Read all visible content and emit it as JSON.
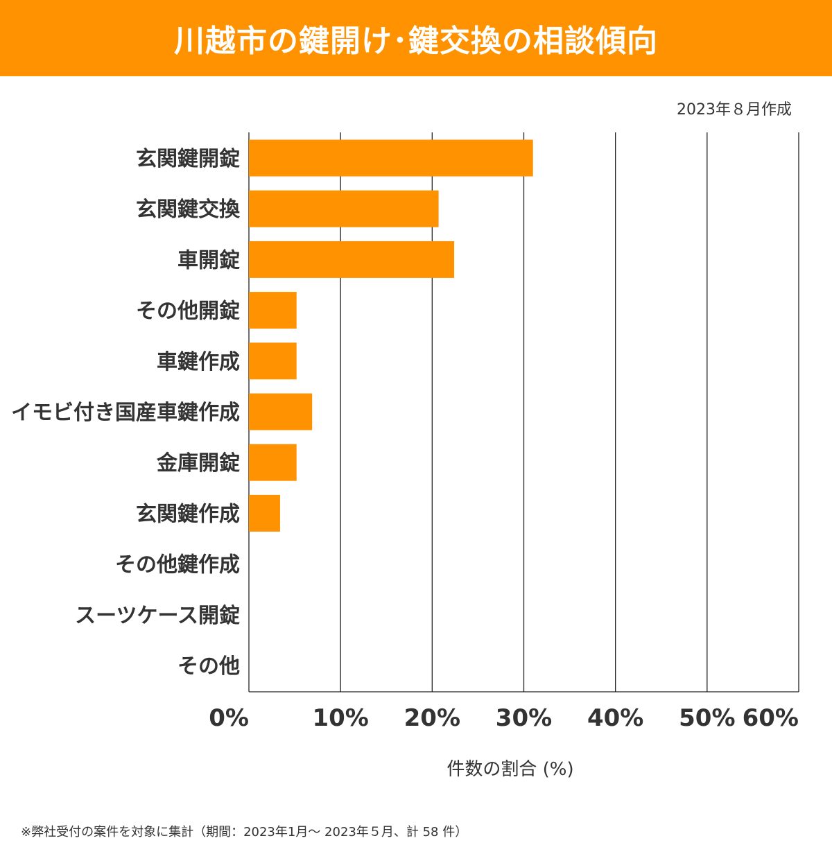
{
  "header": {
    "title": "川越市の鍵開け･鍵交換の相談傾向",
    "created": "2023年８月作成"
  },
  "footnote": "※弊社受付の案件を対象に集計（期間：2023年1月～ 2023年５月、計 58 件）",
  "colors": {
    "accent": "#fe9200",
    "text": "#333333",
    "grid": "#222222"
  },
  "chart_data": {
    "type": "bar",
    "orientation": "horizontal",
    "title": "川越市の鍵開け･鍵交換の相談傾向",
    "xlabel": "件数の割合 (%)",
    "ylabel": "",
    "xlim": [
      0,
      60
    ],
    "xticks": [
      "0%",
      "10%",
      "20%",
      "30%",
      "40%",
      "50%",
      "60%"
    ],
    "grid": true,
    "categories": [
      "玄関鍵開錠",
      "玄関鍵交換",
      "車開錠",
      "その他開錠",
      "車鍵作成",
      "イモビ付き国産車鍵作成",
      "金庫開錠",
      "玄関鍵作成",
      "その他鍵作成",
      "スーツケース開錠",
      "その他"
    ],
    "values": [
      31.0,
      20.7,
      22.4,
      5.2,
      5.2,
      6.9,
      5.2,
      3.4,
      0,
      0,
      0
    ]
  }
}
